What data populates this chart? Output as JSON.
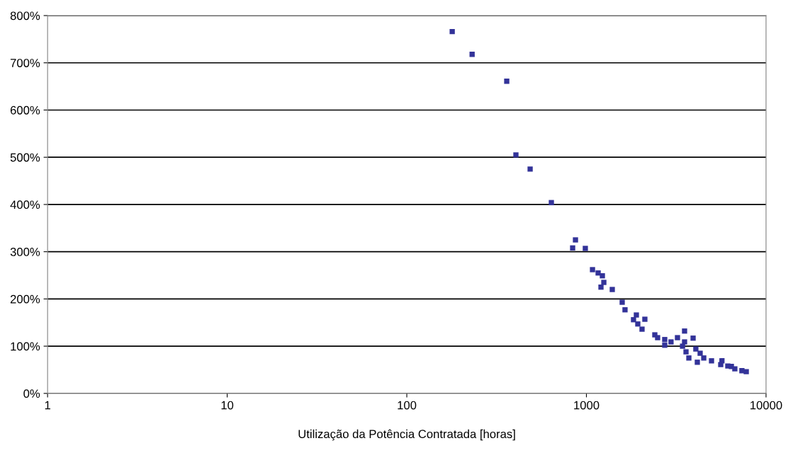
{
  "chart_data": {
    "type": "scatter",
    "xlabel": "Utilização da Potência Contratada [horas]",
    "log": "x",
    "xlim": [
      1,
      10000
    ],
    "xticks": [
      1,
      10,
      100,
      1000,
      10000
    ],
    "ylim": [
      0,
      800
    ],
    "yticks": [
      {
        "value": 0,
        "label": "0%"
      },
      {
        "value": 100,
        "label": "100%"
      },
      {
        "value": 200,
        "label": "200%"
      },
      {
        "value": 300,
        "label": "300%"
      },
      {
        "value": 400,
        "label": "400%"
      },
      {
        "value": 500,
        "label": "500%"
      },
      {
        "value": 600,
        "label": "600%"
      },
      {
        "value": 700,
        "label": "700%"
      },
      {
        "value": 800,
        "label": "800%"
      }
    ],
    "grid": "y",
    "marker": "square",
    "series": [
      {
        "color": "#333399",
        "x": [
          179,
          231,
          360,
          405,
          486,
          638,
          838,
          869,
          986,
          1081,
          1162,
          1227,
          1250,
          1205,
          1393,
          1582,
          1640,
          1897,
          1829,
          2115,
          1932,
          2040,
          2403,
          2491,
          2729,
          2729,
          2958,
          3213,
          3519,
          3519,
          3428,
          3585,
          3718,
          3926,
          4066,
          4297,
          4144,
          4500,
          4971,
          5594,
          5682,
          6126,
          6412,
          6703,
          7338,
          7762
        ],
        "values": [
          766,
          718,
          661,
          505,
          475,
          404,
          308,
          325,
          307,
          262,
          255,
          249,
          235,
          225,
          220,
          193,
          177,
          166,
          156,
          157,
          147,
          136,
          124,
          118,
          114,
          102,
          109,
          118,
          132,
          109,
          100,
          88,
          75,
          117,
          94,
          85,
          66,
          75,
          69,
          61,
          69,
          58,
          57,
          52,
          48,
          46
        ]
      }
    ]
  }
}
